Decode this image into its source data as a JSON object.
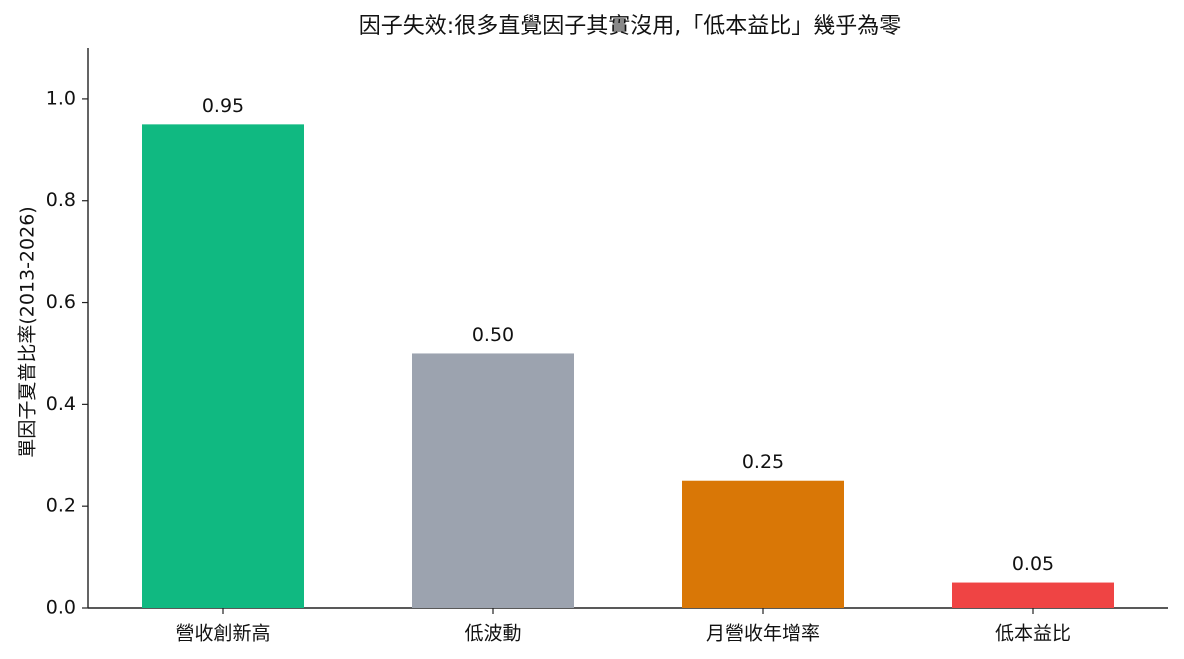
{
  "chart_data": {
    "type": "bar",
    "title": "因子失效:很多直覺因子其實沒用,「低本益比」幾乎為零",
    "y_label": "單因子夏普比率(2013-2026)",
    "categories": [
      "營收創新高",
      "低波動",
      "月營收年增率",
      "低本益比"
    ],
    "values": [
      0.95,
      0.5,
      0.25,
      0.05
    ],
    "value_labels": [
      "0.95",
      "0.50",
      "0.25",
      "0.05"
    ],
    "colors": [
      "#10b981",
      "#9ca3af",
      "#d97706",
      "#ef4444"
    ],
    "ylim": [
      0,
      1.1
    ],
    "yticks": [
      {
        "value": 0,
        "label": "0.0"
      },
      {
        "value": 0.2,
        "label": "0.2"
      },
      {
        "value": 0.4,
        "label": "0.4"
      },
      {
        "value": 0.6,
        "label": "0.6"
      },
      {
        "value": 0.8,
        "label": "0.8"
      },
      {
        "value": 1,
        "label": "1.0"
      }
    ],
    "grid": false
  }
}
